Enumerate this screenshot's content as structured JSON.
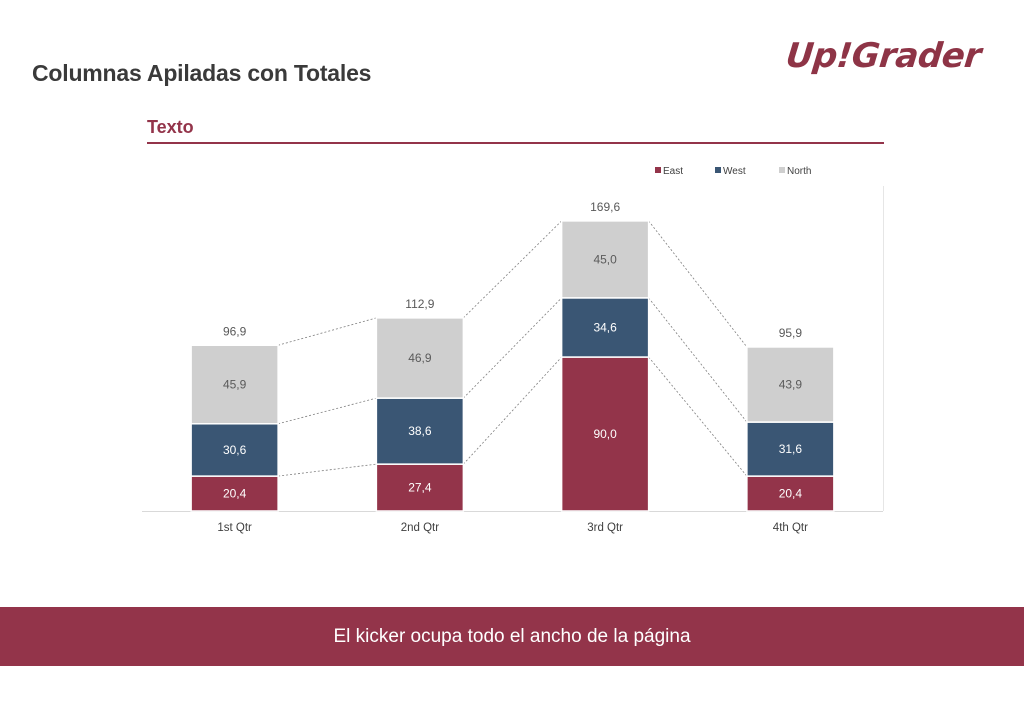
{
  "header": {
    "title": "Columnas Apiladas con Totales",
    "logo_text": "Up!Grader",
    "section_title": "Texto"
  },
  "colors": {
    "accent": "#93344a",
    "east": "#93344a",
    "west": "#3a5674",
    "north": "#cfcfcf"
  },
  "chart_data": {
    "type": "bar",
    "stacked": true,
    "title": "",
    "categories": [
      "1st Qtr",
      "2nd Qtr",
      "3rd Qtr",
      "4th Qtr"
    ],
    "series": [
      {
        "name": "East",
        "values": [
          "20,4",
          "27,4",
          "90,0",
          "20,4"
        ],
        "numeric": [
          20.4,
          27.4,
          90.0,
          20.4
        ],
        "color": "#93344a"
      },
      {
        "name": "West",
        "values": [
          "30,6",
          "38,6",
          "34,6",
          "31,6"
        ],
        "numeric": [
          30.6,
          38.6,
          34.6,
          31.6
        ],
        "color": "#3a5674"
      },
      {
        "name": "North",
        "values": [
          "45,9",
          "46,9",
          "45,0",
          "43,9"
        ],
        "numeric": [
          45.9,
          46.9,
          45.0,
          43.9
        ],
        "color": "#cfcfcf"
      }
    ],
    "totals": [
      "96,9",
      "112,9",
      "169,6",
      "95,9"
    ],
    "ylim": [
      0,
      190
    ],
    "legend_position": "top-right",
    "grid": false,
    "series_connectors": true
  },
  "kicker": {
    "text": "El kicker ocupa todo el ancho de la página"
  }
}
